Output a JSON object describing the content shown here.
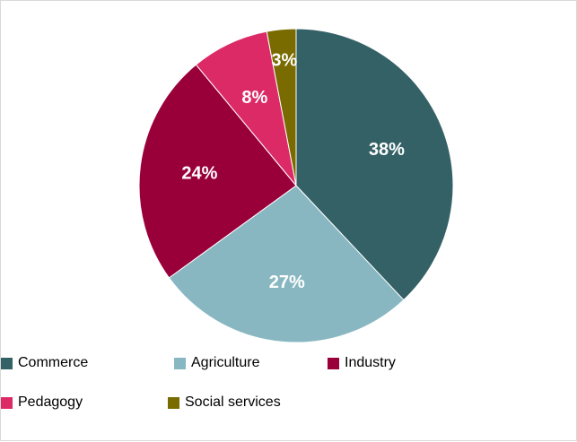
{
  "chart_data": {
    "type": "pie",
    "categories": [
      "Commerce",
      "Agriculture",
      "Industry",
      "Pedagogy",
      "Social services"
    ],
    "values": [
      38,
      27,
      24,
      8,
      3
    ],
    "data_labels": [
      "38%",
      "27%",
      "24%",
      "8%",
      "3%"
    ],
    "colors": [
      "#336166",
      "#88b7c2",
      "#99003a",
      "#dc2a66",
      "#7a6b00"
    ],
    "start_angle": 0,
    "direction": "clockwise",
    "legend_position": "bottom",
    "title": ""
  }
}
